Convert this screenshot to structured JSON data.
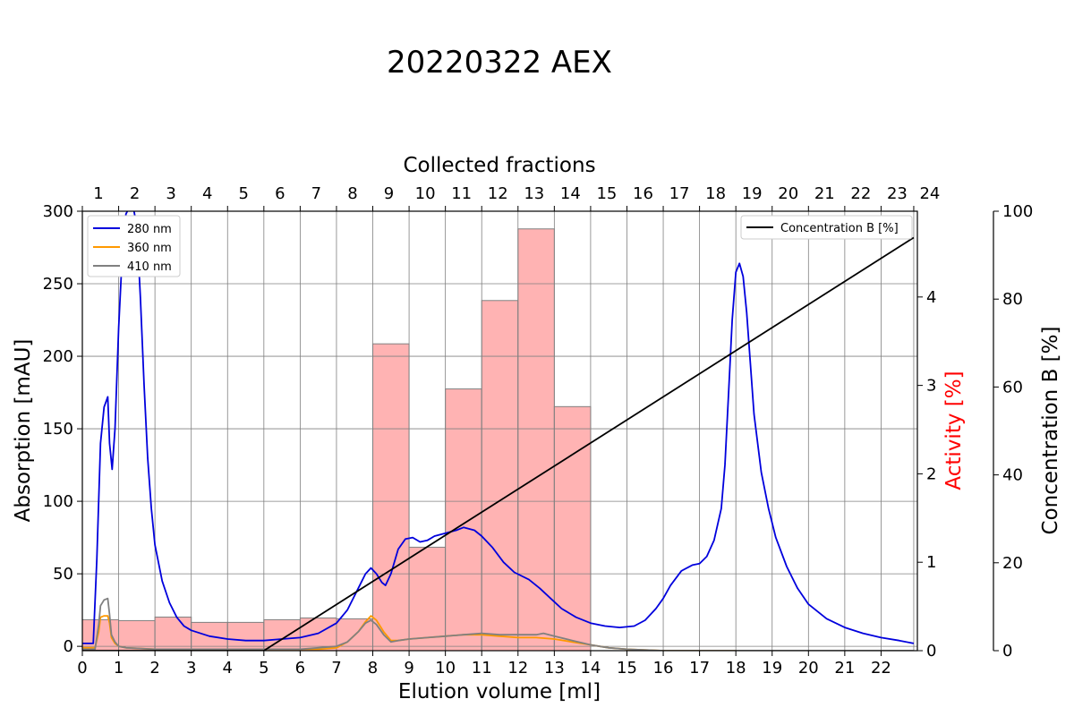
{
  "title": "20220322 AEX",
  "chart_data": {
    "type": "line",
    "title": "20220322 AEX",
    "xlabel": "Elution volume [ml]",
    "xlim": [
      0,
      23
    ],
    "x_ticks": [
      "0",
      "1",
      "2",
      "3",
      "4",
      "5",
      "6",
      "7",
      "8",
      "9",
      "10",
      "11",
      "12",
      "13",
      "14",
      "15",
      "16",
      "17",
      "18",
      "19",
      "20",
      "21",
      "22"
    ],
    "top_axis": {
      "label": "Collected fractions",
      "tick_labels": [
        "1",
        "2",
        "3",
        "4",
        "5",
        "6",
        "7",
        "8",
        "9",
        "10",
        "11",
        "12",
        "13",
        "14",
        "15",
        "16",
        "17",
        "18",
        "19",
        "20",
        "21",
        "22",
        "23",
        "24"
      ],
      "tick_positions": [
        0,
        1,
        2,
        3,
        4,
        5,
        6,
        7,
        8,
        9,
        10,
        11,
        12,
        13,
        14,
        15,
        16,
        17,
        18,
        19,
        20,
        21,
        22,
        22.9
      ]
    },
    "left_axis": {
      "label": "Absorption [mAU]",
      "ylim": [
        -3,
        300
      ],
      "ticks": [
        "0",
        "50",
        "100",
        "150",
        "200",
        "250",
        "300"
      ]
    },
    "activity_axis": {
      "label": "Activity [%]",
      "color": "#ff0000",
      "ylim": [
        0,
        4.97
      ],
      "ticks": [
        "0",
        "1",
        "2",
        "3",
        "4"
      ]
    },
    "concentration_axis": {
      "label": "Concentration B [%]",
      "ylim": [
        0,
        100
      ],
      "ticks": [
        "0",
        "20",
        "40",
        "60",
        "80",
        "100"
      ]
    },
    "grid": true,
    "legend_left": [
      "280 nm",
      "360 nm",
      "410 nm"
    ],
    "legend_right": [
      "Concentration B [%]"
    ],
    "series": [
      {
        "name": "280 nm",
        "axis": "absorption",
        "color": "#0000dd",
        "points": [
          [
            0,
            2
          ],
          [
            0.3,
            2
          ],
          [
            0.4,
            60
          ],
          [
            0.5,
            140
          ],
          [
            0.6,
            165
          ],
          [
            0.7,
            172
          ],
          [
            0.75,
            140
          ],
          [
            0.82,
            122
          ],
          [
            0.9,
            150
          ],
          [
            1.0,
            220
          ],
          [
            1.1,
            270
          ],
          [
            1.2,
            298
          ],
          [
            1.3,
            303
          ],
          [
            1.4,
            303
          ],
          [
            1.5,
            290
          ],
          [
            1.6,
            240
          ],
          [
            1.7,
            180
          ],
          [
            1.8,
            130
          ],
          [
            1.9,
            95
          ],
          [
            2.0,
            70
          ],
          [
            2.2,
            45
          ],
          [
            2.4,
            30
          ],
          [
            2.6,
            20
          ],
          [
            2.8,
            14
          ],
          [
            3.0,
            11
          ],
          [
            3.5,
            7
          ],
          [
            4.0,
            5
          ],
          [
            4.5,
            4
          ],
          [
            5.0,
            4
          ],
          [
            5.5,
            5
          ],
          [
            6.0,
            6
          ],
          [
            6.5,
            9
          ],
          [
            7.0,
            16
          ],
          [
            7.3,
            25
          ],
          [
            7.6,
            40
          ],
          [
            7.8,
            50
          ],
          [
            7.95,
            54
          ],
          [
            8.1,
            50
          ],
          [
            8.25,
            44
          ],
          [
            8.35,
            42
          ],
          [
            8.5,
            50
          ],
          [
            8.7,
            67
          ],
          [
            8.9,
            74
          ],
          [
            9.1,
            75
          ],
          [
            9.3,
            72
          ],
          [
            9.5,
            73
          ],
          [
            9.7,
            76
          ],
          [
            10.0,
            78
          ],
          [
            10.3,
            80
          ],
          [
            10.5,
            82
          ],
          [
            10.8,
            80
          ],
          [
            11.0,
            76
          ],
          [
            11.3,
            68
          ],
          [
            11.6,
            58
          ],
          [
            11.9,
            51
          ],
          [
            12.3,
            46
          ],
          [
            12.6,
            40
          ],
          [
            12.9,
            33
          ],
          [
            13.2,
            26
          ],
          [
            13.6,
            20
          ],
          [
            14.0,
            16
          ],
          [
            14.4,
            14
          ],
          [
            14.8,
            13
          ],
          [
            15.2,
            14
          ],
          [
            15.5,
            18
          ],
          [
            15.8,
            26
          ],
          [
            16.0,
            33
          ],
          [
            16.2,
            42
          ],
          [
            16.5,
            52
          ],
          [
            16.8,
            56
          ],
          [
            17.0,
            57
          ],
          [
            17.2,
            62
          ],
          [
            17.4,
            73
          ],
          [
            17.6,
            95
          ],
          [
            17.7,
            125
          ],
          [
            17.8,
            175
          ],
          [
            17.9,
            225
          ],
          [
            18.0,
            258
          ],
          [
            18.1,
            264
          ],
          [
            18.2,
            255
          ],
          [
            18.3,
            230
          ],
          [
            18.4,
            195
          ],
          [
            18.5,
            160
          ],
          [
            18.7,
            120
          ],
          [
            18.9,
            95
          ],
          [
            19.1,
            75
          ],
          [
            19.4,
            55
          ],
          [
            19.7,
            40
          ],
          [
            20.0,
            29
          ],
          [
            20.5,
            19
          ],
          [
            21.0,
            13
          ],
          [
            21.5,
            9
          ],
          [
            22.0,
            6
          ],
          [
            22.5,
            4
          ],
          [
            22.9,
            2
          ]
        ]
      },
      {
        "name": "360 nm",
        "axis": "absorption",
        "color": "#ff9900",
        "points": [
          [
            0,
            -1
          ],
          [
            0.35,
            -1
          ],
          [
            0.45,
            10
          ],
          [
            0.5,
            20
          ],
          [
            0.6,
            21
          ],
          [
            0.7,
            21
          ],
          [
            0.75,
            16
          ],
          [
            0.8,
            6
          ],
          [
            0.9,
            2
          ],
          [
            1.0,
            0
          ],
          [
            1.2,
            -1
          ],
          [
            2.0,
            -2
          ],
          [
            5.0,
            -2
          ],
          [
            6.0,
            -2
          ],
          [
            6.5,
            -2
          ],
          [
            7.0,
            -1
          ],
          [
            7.3,
            3
          ],
          [
            7.6,
            10
          ],
          [
            7.8,
            17
          ],
          [
            7.95,
            21
          ],
          [
            8.1,
            18
          ],
          [
            8.3,
            10
          ],
          [
            8.5,
            4
          ],
          [
            8.7,
            4
          ],
          [
            9.0,
            5
          ],
          [
            9.5,
            6
          ],
          [
            10.0,
            7
          ],
          [
            10.5,
            8
          ],
          [
            11.0,
            8
          ],
          [
            11.5,
            7
          ],
          [
            12.0,
            6
          ],
          [
            12.5,
            6
          ],
          [
            13.0,
            5
          ],
          [
            13.5,
            3
          ],
          [
            14.0,
            1
          ],
          [
            14.5,
            -1
          ],
          [
            15.0,
            -2
          ],
          [
            16.0,
            -3
          ],
          [
            17.0,
            -3
          ],
          [
            18.0,
            -3
          ]
        ]
      },
      {
        "name": "410 nm",
        "axis": "absorption",
        "color": "#808080",
        "points": [
          [
            0,
            -2
          ],
          [
            0.35,
            -2
          ],
          [
            0.45,
            15
          ],
          [
            0.5,
            28
          ],
          [
            0.6,
            32
          ],
          [
            0.7,
            33
          ],
          [
            0.75,
            22
          ],
          [
            0.8,
            8
          ],
          [
            0.9,
            3
          ],
          [
            1.0,
            0
          ],
          [
            1.2,
            -1
          ],
          [
            2.0,
            -2
          ],
          [
            5.0,
            -2
          ],
          [
            6.0,
            -2
          ],
          [
            6.5,
            -1
          ],
          [
            7.0,
            0
          ],
          [
            7.3,
            3
          ],
          [
            7.6,
            10
          ],
          [
            7.8,
            16
          ],
          [
            7.95,
            18
          ],
          [
            8.1,
            15
          ],
          [
            8.3,
            8
          ],
          [
            8.5,
            3
          ],
          [
            8.7,
            4
          ],
          [
            9.0,
            5
          ],
          [
            9.5,
            6
          ],
          [
            10.0,
            7
          ],
          [
            10.5,
            8
          ],
          [
            11.0,
            9
          ],
          [
            11.5,
            8
          ],
          [
            12.0,
            8
          ],
          [
            12.5,
            8
          ],
          [
            12.7,
            9
          ],
          [
            13.0,
            7
          ],
          [
            13.5,
            4
          ],
          [
            14.0,
            1
          ],
          [
            14.5,
            -1
          ],
          [
            15.0,
            -2
          ],
          [
            16.0,
            -3
          ],
          [
            17.0,
            -3
          ],
          [
            18.0,
            -3
          ],
          [
            19.0,
            -3
          ],
          [
            22.9,
            -3
          ]
        ]
      },
      {
        "name": "Concentration B [%]",
        "axis": "concentration",
        "color": "#000000",
        "points": [
          [
            0,
            0
          ],
          [
            5.0,
            0
          ],
          [
            22.9,
            94
          ]
        ]
      }
    ],
    "bars": {
      "name": "Activity [%]",
      "axis": "activity",
      "color": "#ffb3b3",
      "edgecolor": "#808080",
      "edges": [
        0,
        1,
        2,
        3,
        4,
        5,
        6,
        7,
        8,
        9,
        10,
        11,
        12,
        13,
        14
      ],
      "values": [
        0.35,
        0.34,
        0.38,
        0.32,
        0.32,
        0.35,
        0.37,
        0.36,
        3.47,
        1.17,
        2.96,
        3.96,
        4.77,
        2.76
      ]
    }
  }
}
